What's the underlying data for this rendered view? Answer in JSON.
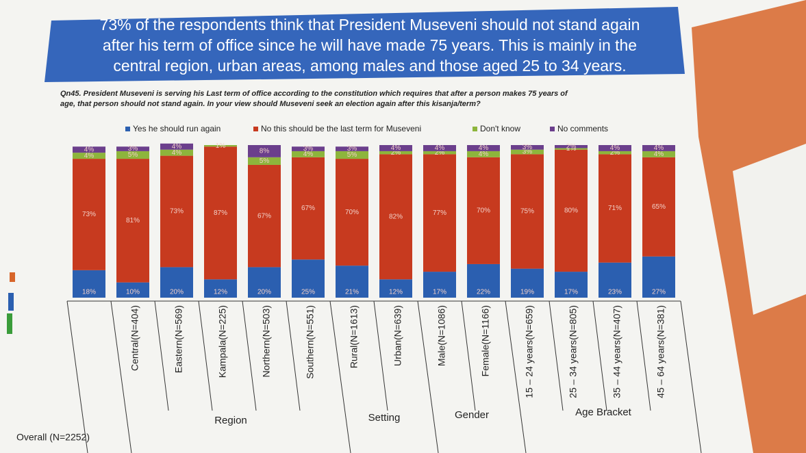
{
  "headline": [
    "73% of the respondents think that President Museveni should not stand again",
    "after his term of office since he will have made 75 years. This is mainly in the",
    "central region, urban areas, among males and those aged 25 to 34 years."
  ],
  "question": [
    "Qn45. President Museveni is serving his Last term of office according to the constitution which requires that after a person makes 75 years of",
    "age, that person should not stand again. In your view should Museveni seek an election again after this kisanja/term?"
  ],
  "chart_data": {
    "type": "stacked_bar",
    "categories": [
      "Overall (N=2252)",
      "Central(N=404)",
      "Eastern(N=569)",
      "Kampala(N=225)",
      "Northern(N=503)",
      "Southern(N=551)",
      "Rural(N=1613)",
      "Urban(N=639)",
      "Male(N=1086)",
      "Female(N=1166)",
      "15 – 24 years(N=659)",
      "25 – 34 years(N=805)",
      "35 – 44 years(N=407)",
      "45 – 64 years(N=381)"
    ],
    "group_labels": [
      "Region",
      "Setting",
      "Gender",
      "Age Bracket"
    ],
    "ylim": [
      0,
      100
    ],
    "series": [
      {
        "name": "Yes he should run again",
        "color": "#2b5fb0",
        "values": [
          18,
          10,
          20,
          12,
          20,
          25,
          21,
          12,
          17,
          22,
          19,
          17,
          23,
          27
        ],
        "value_labels": [
          "18%",
          "10%",
          "20%",
          "12%",
          "20%",
          "25%",
          "21%",
          "12%",
          "17%",
          "22%",
          "19%",
          "17%",
          "23%",
          "27%"
        ]
      },
      {
        "name": "No this should be the last term for Museveni",
        "color": "#c73a1f",
        "values": [
          73,
          81,
          73,
          87,
          67,
          67,
          70,
          82,
          77,
          70,
          75,
          80,
          71,
          65
        ],
        "value_labels": [
          "73%",
          "81%",
          "73%",
          "87%",
          "67%",
          "67%",
          "70%",
          "82%",
          "77%",
          "70%",
          "75%",
          "80%",
          "71%",
          "65%"
        ]
      },
      {
        "name": "Don't know",
        "color": "#8db53c",
        "values": [
          4,
          5,
          4,
          1,
          5,
          4,
          5,
          2,
          2,
          4,
          3,
          1,
          2,
          4
        ],
        "value_labels": [
          "4%",
          "5%",
          "4%",
          "1%",
          "5%",
          "4%",
          "5%",
          "2%",
          "2%",
          "4%",
          "3%",
          "1%",
          "2%",
          "4%"
        ]
      },
      {
        "name": "No comments",
        "color": "#6b3f8c",
        "values": [
          4,
          3,
          4,
          0,
          8,
          3,
          3,
          4,
          4,
          4,
          3,
          2,
          4,
          4
        ],
        "value_labels": [
          "4%",
          "3%",
          "4%",
          null,
          "8%",
          "3%",
          "3%",
          "4%",
          "4%",
          "4%",
          "3%",
          "2%",
          "4%",
          "4%"
        ]
      }
    ]
  }
}
